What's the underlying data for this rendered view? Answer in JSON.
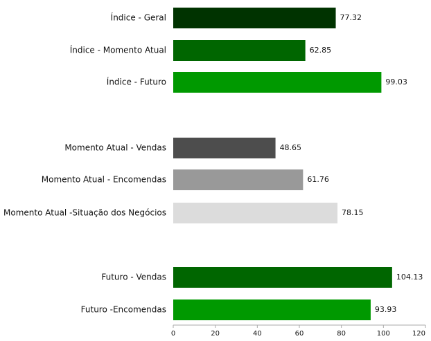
{
  "chart_data": {
    "type": "bar",
    "orientation": "horizontal",
    "title": "",
    "xlabel": "",
    "ylabel": "",
    "xlim": [
      0,
      120
    ],
    "x_ticks": [
      0,
      20,
      40,
      60,
      80,
      100,
      120
    ],
    "grid": false,
    "legend": "none",
    "categories": [
      "Índice - Geral",
      "Índice - Momento Atual",
      "Índice - Futuro",
      "Momento Atual - Vendas",
      "Momento Atual - Encomendas",
      "Momento Atual -Situação dos Negócios",
      "Futuro - Vendas",
      "Futuro -Encomendas"
    ],
    "values": [
      77.32,
      62.85,
      99.03,
      48.65,
      61.76,
      78.15,
      104.13,
      93.93
    ],
    "value_labels": [
      "77.32",
      "62.85",
      "99.03",
      "48.65",
      "61.76",
      "78.15",
      "104.13",
      "93.93"
    ],
    "colors": [
      "#003300",
      "#006600",
      "#009900",
      "#4d4d4d",
      "#999999",
      "#dcdcdc",
      "#006600",
      "#009900"
    ],
    "groups": [
      {
        "items": [
          0,
          1,
          2
        ]
      },
      {
        "items": [
          3,
          4,
          5
        ]
      },
      {
        "items": [
          6,
          7
        ]
      }
    ],
    "axis_color": "#aaaaaa"
  }
}
